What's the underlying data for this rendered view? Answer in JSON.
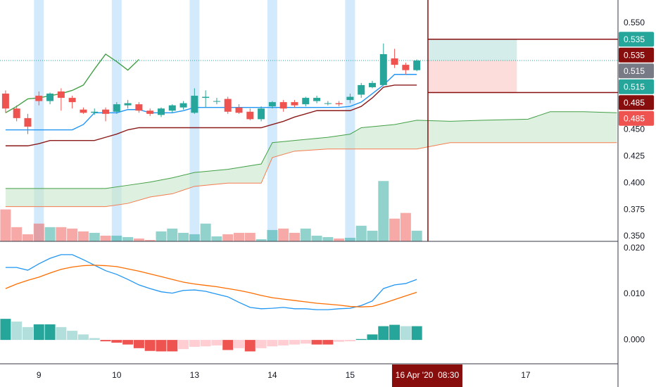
{
  "chart_data": [
    {
      "type": "candlestick",
      "xlim": [
        -0.5,
        55.1
      ],
      "xticks": [
        {
          "value": 3,
          "label": "9"
        },
        {
          "value": 10,
          "label": "10"
        },
        {
          "value": 17,
          "label": "13"
        },
        {
          "value": 24,
          "label": "14"
        },
        {
          "value": 31,
          "label": "15"
        },
        {
          "value": 46.8,
          "label": "17"
        }
      ],
      "ylim": [
        0.3454,
        0.5718
      ],
      "yticks": [
        {
          "value": 0.55,
          "label": "0.550"
        },
        {
          "value": 0.45,
          "label": "0.450"
        },
        {
          "value": 0.425,
          "label": "0.425"
        },
        {
          "value": 0.4,
          "label": "0.400"
        },
        {
          "value": 0.375,
          "label": "0.375"
        },
        {
          "value": 0.35,
          "label": "0.350"
        }
      ],
      "up_color": "#26a69a",
      "down_color": "#ef5350",
      "open": [
        0.484,
        0.47,
        0.461,
        0.482,
        0.477,
        0.486,
        0.48,
        0.469,
        0.466,
        0.469,
        0.467,
        0.473,
        0.474,
        0.468,
        0.464,
        0.468,
        0.471,
        0.466,
        0.48,
        0.477,
        0.479,
        0.471,
        0.467,
        0.46,
        0.472,
        0.476,
        0.476,
        0.474,
        0.477,
        0.475,
        0.475,
        0.478,
        0.483,
        0.49,
        0.492,
        0.517,
        0.511,
        0.506
      ],
      "high": [
        0.487,
        0.473,
        0.465,
        0.486,
        0.485,
        0.489,
        0.482,
        0.471,
        0.47,
        0.471,
        0.476,
        0.478,
        0.476,
        0.47,
        0.471,
        0.474,
        0.477,
        0.489,
        0.487,
        0.48,
        0.481,
        0.474,
        0.47,
        0.472,
        0.477,
        0.478,
        0.478,
        0.481,
        0.482,
        0.477,
        0.477,
        0.484,
        0.494,
        0.496,
        0.531,
        0.526,
        0.513,
        0.516
      ],
      "low": [
        0.466,
        0.458,
        0.446,
        0.473,
        0.474,
        0.468,
        0.47,
        0.465,
        0.464,
        0.458,
        0.465,
        0.47,
        0.466,
        0.463,
        0.462,
        0.466,
        0.469,
        0.465,
        0.471,
        0.474,
        0.465,
        0.465,
        0.459,
        0.458,
        0.47,
        0.467,
        0.471,
        0.472,
        0.475,
        0.473,
        0.472,
        0.475,
        0.48,
        0.489,
        0.492,
        0.508,
        0.502,
        0.505
      ],
      "close": [
        0.47,
        0.461,
        0.453,
        0.477,
        0.484,
        0.48,
        0.476,
        0.466,
        0.467,
        0.465,
        0.474,
        0.475,
        0.468,
        0.465,
        0.47,
        0.473,
        0.475,
        0.482,
        0.481,
        0.477,
        0.467,
        0.466,
        0.46,
        0.47,
        0.476,
        0.47,
        0.473,
        0.48,
        0.48,
        0.475,
        0.474,
        0.481,
        0.492,
        0.494,
        0.521,
        0.511,
        0.506,
        0.515
      ],
      "volume": [
        45,
        20,
        10,
        25,
        20,
        20,
        18,
        14,
        12,
        8,
        8,
        6,
        4,
        2,
        14,
        18,
        12,
        10,
        25,
        7,
        10,
        12,
        12,
        3,
        16,
        18,
        12,
        18,
        8,
        6,
        4,
        5,
        22,
        15,
        85,
        32,
        40,
        15
      ],
      "lines": [
        {
          "color": "#2196f3",
          "values": [
            0.45,
            0.45,
            0.45,
            0.45,
            0.45,
            0.45,
            0.45,
            0.455,
            0.466,
            0.466,
            0.466,
            0.469,
            0.469,
            0.466,
            0.466,
            0.466,
            0.468,
            0.471,
            0.471,
            0.471,
            0.471,
            0.471,
            0.471,
            0.471,
            0.471,
            0.471,
            0.471,
            0.471,
            0.471,
            0.471,
            0.471,
            0.472,
            0.476,
            0.484,
            0.492,
            0.502,
            0.502,
            0.502
          ]
        },
        {
          "color": "#8b1a1a",
          "values": [
            0.435,
            0.435,
            0.435,
            0.437,
            0.44,
            0.44,
            0.44,
            0.44,
            0.44,
            0.443,
            0.446,
            0.45,
            0.452,
            0.452,
            0.452,
            0.452,
            0.452,
            0.452,
            0.452,
            0.452,
            0.452,
            0.452,
            0.452,
            0.452,
            0.455,
            0.458,
            0.462,
            0.465,
            0.468,
            0.468,
            0.468,
            0.468,
            0.472,
            0.48,
            0.49,
            0.492,
            0.492,
            0.492
          ]
        },
        {
          "color": "#43a047",
          "values": [
            0.466,
            0.472,
            0.479,
            0.48,
            0.482,
            0.484,
            0.487,
            0.492,
            0.507,
            0.521,
            0.514,
            0.506,
            0.516
          ]
        }
      ],
      "cloud": {
        "x": [
          0,
          9,
          11,
          13,
          15,
          17,
          20,
          23,
          24,
          26,
          29,
          31,
          32,
          35,
          37,
          40,
          43,
          47,
          49,
          52,
          55
        ],
        "span_a": [
          0.395,
          0.395,
          0.398,
          0.401,
          0.405,
          0.41,
          0.413,
          0.418,
          0.438,
          0.44,
          0.443,
          0.446,
          0.452,
          0.455,
          0.459,
          0.458,
          0.459,
          0.46,
          0.467,
          0.467,
          0.466
        ],
        "span_b": [
          0.378,
          0.378,
          0.381,
          0.387,
          0.39,
          0.397,
          0.4,
          0.4,
          0.424,
          0.43,
          0.432,
          0.432,
          0.432,
          0.432,
          0.432,
          0.438,
          0.438,
          0.438,
          0.438,
          0.438,
          0.438
        ],
        "color_a": "#43a047",
        "color_b": "#f57c4f",
        "fill": "#c8e6c9"
      },
      "tags": [
        {
          "value": 0.535,
          "color": "#26a69a"
        },
        {
          "value": 0.535,
          "color": "#880e0e"
        },
        {
          "value": 0.515,
          "color": "#787b86"
        },
        {
          "value": 0.515,
          "color": "#26a69a"
        },
        {
          "value": 0.485,
          "color": "#880e0e"
        },
        {
          "value": 0.485,
          "color": "#ef5350"
        }
      ],
      "crosshair": {
        "x": 38,
        "label": "16 Apr '20  08:30",
        "color": "#880e0e"
      },
      "position_x": [
        38,
        46
      ]
    },
    {
      "type": "macd",
      "ylim": [
        -0.0052,
        0.0215
      ],
      "yticks": [
        {
          "value": 0.02,
          "label": "0.020"
        },
        {
          "value": 0.01,
          "label": "0.010"
        },
        {
          "value": 0,
          "label": "0.000"
        }
      ],
      "macd": {
        "color": "#2196f3",
        "values": [
          0.0158,
          0.0158,
          0.0152,
          0.0166,
          0.0178,
          0.0186,
          0.0186,
          0.0175,
          0.0163,
          0.0151,
          0.0143,
          0.0132,
          0.012,
          0.0112,
          0.0105,
          0.0102,
          0.0108,
          0.0109,
          0.0106,
          0.01,
          0.0094,
          0.0082,
          0.0071,
          0.0068,
          0.0069,
          0.0071,
          0.0068,
          0.0068,
          0.0066,
          0.0066,
          0.0068,
          0.0069,
          0.0075,
          0.0085,
          0.0112,
          0.012,
          0.0123,
          0.0132
        ]
      },
      "signal": {
        "color": "#ff6d00",
        "values": [
          0.0112,
          0.0122,
          0.013,
          0.0137,
          0.0146,
          0.0154,
          0.0159,
          0.0162,
          0.0163,
          0.0162,
          0.016,
          0.0155,
          0.015,
          0.0144,
          0.0138,
          0.0132,
          0.0126,
          0.0122,
          0.0119,
          0.0116,
          0.0112,
          0.0108,
          0.0103,
          0.0097,
          0.0092,
          0.0089,
          0.0086,
          0.0083,
          0.008,
          0.0078,
          0.0076,
          0.0073,
          0.0072,
          0.0073,
          0.008,
          0.0088,
          0.0096,
          0.0104
        ]
      },
      "histogram": [
        0.0046,
        0.004,
        0.0028,
        0.0034,
        0.0034,
        0.0028,
        0.002,
        0.0012,
        0.0004,
        -0.0003,
        -0.0006,
        -0.001,
        -0.0018,
        -0.0024,
        -0.0025,
        -0.0025,
        -0.002,
        -0.0015,
        -0.0014,
        -0.0012,
        -0.0022,
        -0.0018,
        -0.0025,
        -0.0018,
        -0.0014,
        -0.0012,
        -0.001,
        -0.0008,
        -0.001,
        -0.001,
        -0.0004,
        -0.0003,
        0.0002,
        0.0012,
        0.003,
        0.0033,
        0.003,
        0.003
      ],
      "hist_colors": [
        "#26a69a",
        "#b2dfdb",
        "#ef5350",
        "#ffcdd2"
      ]
    }
  ]
}
